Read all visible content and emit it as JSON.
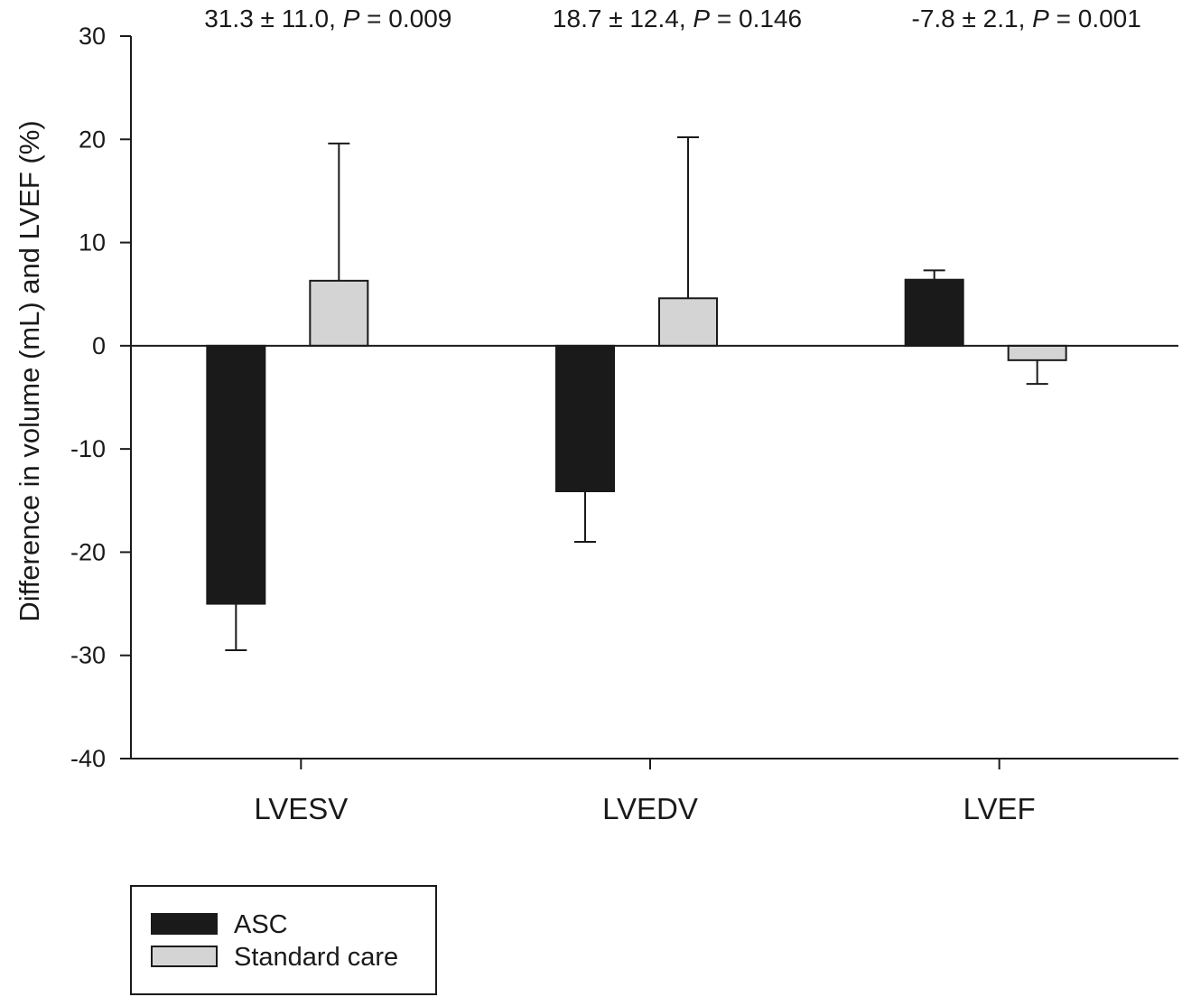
{
  "chart_data": {
    "type": "bar",
    "ylabel": "Difference in volume (mL) and LVEF (%)",
    "xlabel": "",
    "ylim": [
      -40,
      30
    ],
    "yticks": [
      30,
      20,
      10,
      0,
      -10,
      -20,
      -30,
      -40
    ],
    "ytick_labels": [
      "30",
      "20",
      "10",
      "0",
      "-10",
      "-20",
      "-30",
      "-40"
    ],
    "categories": [
      "LVESV",
      "LVEDV",
      "LVEF"
    ],
    "series": [
      {
        "name": "ASC",
        "color": "#1a1a1a",
        "values": [
          -25.0,
          -14.1,
          6.4
        ],
        "error": [
          4.5,
          4.9,
          0.9
        ]
      },
      {
        "name": "Standard care",
        "color": "#d4d4d4",
        "values": [
          6.3,
          4.6,
          -1.4
        ],
        "error": [
          13.3,
          15.6,
          2.3
        ]
      }
    ],
    "annotations": [
      {
        "text": "31.3 ± 11.0, ",
        "p_label": "P",
        "p_text": " = 0.009"
      },
      {
        "text": "18.7 ± 12.4, ",
        "p_label": "P",
        "p_text": " = 0.146"
      },
      {
        "text": "-7.8 ± 2.1, ",
        "p_label": "P",
        "p_text": " = 0.001"
      }
    ],
    "grid": false,
    "legend_position": "bottom-left"
  }
}
